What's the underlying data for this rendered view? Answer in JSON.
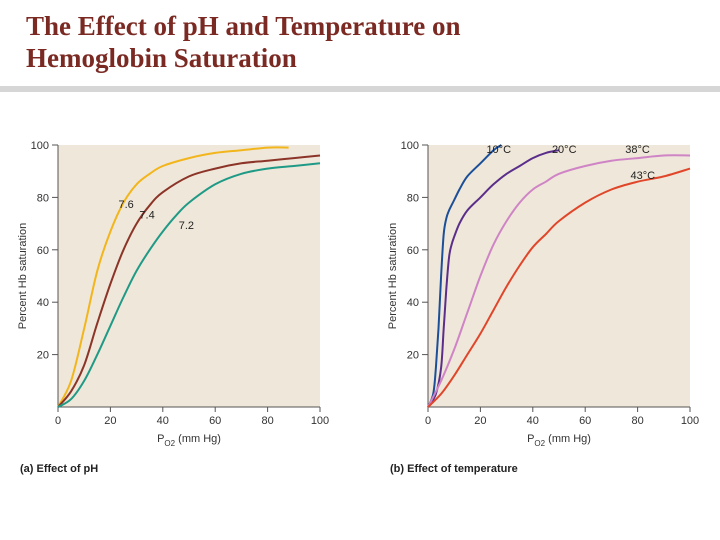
{
  "slide": {
    "title_line1": "The Effect of pH and Temperature on",
    "title_line2": "Hemoglobin Saturation"
  },
  "chart_data": [
    {
      "type": "line",
      "caption": "(a) Effect of pH",
      "xlabel_main": "P",
      "xlabel_sub": "O2",
      "xlabel_rest": " (mm Hg)",
      "ylabel": "Percent Hb saturation",
      "xlim": [
        0,
        100
      ],
      "ylim": [
        0,
        100
      ],
      "xticks": [
        0,
        20,
        40,
        60,
        80,
        100
      ],
      "yticks": [
        20,
        40,
        60,
        80,
        100
      ],
      "background": "#efe7d9",
      "series": [
        {
          "name": "7.6",
          "color": "#f2b51c",
          "label_at": [
            26,
            76
          ],
          "x": [
            0,
            5,
            10,
            15,
            20,
            25,
            30,
            35,
            40,
            50,
            60,
            70,
            80,
            88
          ],
          "y": [
            0,
            10,
            30,
            52,
            67,
            78,
            85,
            89,
            92,
            95,
            97,
            98,
            99,
            99
          ]
        },
        {
          "name": "7.4",
          "color": "#8b3427",
          "label_at": [
            34,
            72
          ],
          "x": [
            0,
            5,
            10,
            15,
            20,
            25,
            30,
            35,
            40,
            50,
            60,
            70,
            80,
            90,
            100
          ],
          "y": [
            0,
            6,
            16,
            32,
            47,
            60,
            70,
            77,
            82,
            88,
            91,
            93,
            94,
            95,
            96
          ]
        },
        {
          "name": "7.2",
          "color": "#1f9a86",
          "label_at": [
            49,
            68
          ],
          "x": [
            0,
            5,
            10,
            15,
            20,
            25,
            30,
            35,
            40,
            45,
            50,
            60,
            70,
            80,
            90,
            100
          ],
          "y": [
            0,
            3,
            10,
            20,
            31,
            42,
            52,
            60,
            67,
            73,
            78,
            85,
            89,
            91,
            92,
            93
          ]
        }
      ]
    },
    {
      "type": "line",
      "caption": "(b) Effect of temperature",
      "xlabel_main": "P",
      "xlabel_sub": "O2",
      "xlabel_rest": " (mm Hg)",
      "ylabel": "Percent Hb saturation",
      "xlim": [
        0,
        100
      ],
      "ylim": [
        0,
        100
      ],
      "xticks": [
        0,
        20,
        40,
        60,
        80,
        100
      ],
      "yticks": [
        20,
        40,
        60,
        80,
        100
      ],
      "background": "#efe7d9",
      "series": [
        {
          "name": "10°C",
          "color": "#1c4f99",
          "label_at": [
            27,
            97
          ],
          "x": [
            0,
            2,
            3,
            4,
            5,
            6,
            7,
            8,
            10,
            12,
            15,
            20,
            25,
            28
          ],
          "y": [
            0,
            5,
            15,
            30,
            50,
            66,
            72,
            75,
            79,
            83,
            88,
            93,
            98,
            100
          ]
        },
        {
          "name": "20°C",
          "color": "#5a2e8a",
          "label_at": [
            52,
            97
          ],
          "x": [
            0,
            3,
            5,
            6,
            7,
            8,
            9,
            10,
            12,
            15,
            20,
            25,
            30,
            35,
            40,
            45,
            50
          ],
          "y": [
            0,
            5,
            15,
            30,
            45,
            57,
            62,
            65,
            70,
            75,
            80,
            85,
            89,
            92,
            95,
            97,
            98
          ]
        },
        {
          "name": "38°C",
          "color": "#cf84c6",
          "label_at": [
            80,
            97
          ],
          "x": [
            0,
            5,
            10,
            15,
            20,
            25,
            30,
            35,
            40,
            45,
            50,
            60,
            70,
            80,
            90,
            100
          ],
          "y": [
            0,
            10,
            22,
            36,
            50,
            62,
            71,
            78,
            83,
            86,
            89,
            92,
            94,
            95,
            96,
            96
          ]
        },
        {
          "name": "43°C",
          "color": "#e0462a",
          "label_at": [
            82,
            87
          ],
          "x": [
            0,
            5,
            10,
            15,
            20,
            25,
            30,
            35,
            40,
            45,
            50,
            60,
            70,
            80,
            90,
            100
          ],
          "y": [
            0,
            5,
            12,
            20,
            28,
            37,
            46,
            54,
            61,
            66,
            71,
            78,
            83,
            86,
            88,
            91
          ]
        }
      ]
    }
  ]
}
